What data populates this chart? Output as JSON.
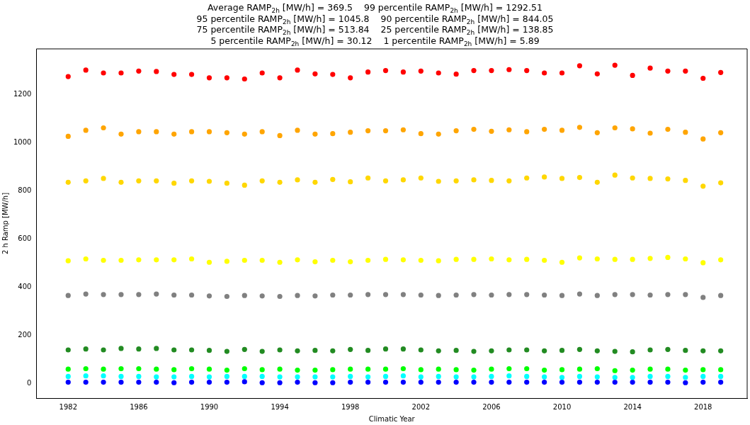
{
  "chart_data": {
    "type": "scatter",
    "title": "Average RAMP$_{2h}$ [MW/h] = 369.5    99 percentile RAMP$_{2h}$ [MW/h] = 1292.51\n95 percentile RAMP$_{2h}$ [MW/h] = 1045.8    90 percentile RAMP$_{2h}$ [MW/h] = 844.05\n75 percentile RAMP$_{2h}$ [MW/h] = 513.84    25 percentile RAMP$_{2h}$ [MW/h] = 138.85\n5 percentile RAMP$_{2h}$ [MW/h] = 30.12    1 percentile RAMP$_{2h}$ [MW/h] = 5.89",
    "xlabel": "Climatic Year",
    "ylabel": "2 h Ramp [MW/h]",
    "x": [
      1982,
      1983,
      1984,
      1985,
      1986,
      1987,
      1988,
      1989,
      1990,
      1991,
      1992,
      1993,
      1994,
      1995,
      1996,
      1997,
      1998,
      1999,
      2000,
      2001,
      2002,
      2003,
      2004,
      2005,
      2006,
      2007,
      2008,
      2009,
      2010,
      2011,
      2012,
      2013,
      2014,
      2015,
      2016,
      2017,
      2018,
      2019
    ],
    "xlim": [
      1980.2,
      2020.5
    ],
    "xticks": [
      1982,
      1986,
      1990,
      1994,
      1998,
      2002,
      2006,
      2010,
      2014,
      2018
    ],
    "ylim": [
      -60,
      1390
    ],
    "yticks": [
      0,
      200,
      400,
      600,
      800,
      1000,
      1200
    ],
    "grid": false,
    "legend": false,
    "marker": "circle",
    "series": [
      {
        "color": "#ff0000",
        "values": [
          1275,
          1302,
          1290,
          1290,
          1298,
          1296,
          1284,
          1284,
          1270,
          1270,
          1265,
          1290,
          1270,
          1302,
          1286,
          1284,
          1270,
          1294,
          1300,
          1294,
          1298,
          1290,
          1285,
          1300,
          1300,
          1304,
          1300,
          1290,
          1290,
          1320,
          1286,
          1322,
          1280,
          1310,
          1298,
          1298,
          1268,
          1292
        ]
      },
      {
        "color": "#ffa500",
        "values": [
          1027,
          1052,
          1062,
          1036,
          1046,
          1046,
          1036,
          1046,
          1046,
          1042,
          1036,
          1046,
          1030,
          1052,
          1036,
          1038,
          1044,
          1050,
          1050,
          1054,
          1038,
          1036,
          1050,
          1056,
          1048,
          1054,
          1046,
          1056,
          1052,
          1064,
          1042,
          1062,
          1058,
          1040,
          1056,
          1044,
          1016,
          1042
        ]
      },
      {
        "color": "#ffd700",
        "values": [
          836,
          842,
          852,
          836,
          842,
          842,
          832,
          842,
          840,
          832,
          824,
          842,
          836,
          846,
          836,
          848,
          838,
          854,
          842,
          846,
          854,
          840,
          842,
          846,
          844,
          842,
          854,
          858,
          852,
          856,
          836,
          866,
          854,
          852,
          850,
          844,
          820,
          834
        ]
      },
      {
        "color": "#ffff00",
        "values": [
          510,
          518,
          512,
          512,
          514,
          514,
          514,
          518,
          504,
          508,
          512,
          512,
          504,
          514,
          506,
          512,
          506,
          512,
          516,
          514,
          512,
          510,
          516,
          516,
          518,
          514,
          516,
          512,
          504,
          522,
          518,
          516,
          516,
          520,
          524,
          518,
          502,
          514
        ]
      },
      {
        "color": "#808080",
        "values": [
          366,
          372,
          370,
          370,
          370,
          372,
          368,
          368,
          364,
          362,
          366,
          364,
          362,
          366,
          364,
          368,
          368,
          370,
          370,
          370,
          368,
          366,
          368,
          370,
          368,
          370,
          370,
          368,
          366,
          372,
          366,
          370,
          370,
          368,
          370,
          370,
          358,
          366
        ]
      },
      {
        "color": "#228b22",
        "values": [
          140,
          144,
          140,
          146,
          144,
          146,
          140,
          140,
          138,
          134,
          142,
          134,
          140,
          136,
          138,
          136,
          142,
          138,
          144,
          144,
          140,
          136,
          138,
          134,
          136,
          140,
          140,
          136,
          138,
          142,
          136,
          134,
          132,
          140,
          142,
          138,
          136,
          136
        ]
      },
      {
        "color": "#00ff00",
        "values": [
          60,
          62,
          60,
          62,
          62,
          60,
          58,
          62,
          60,
          56,
          62,
          58,
          60,
          56,
          56,
          58,
          60,
          60,
          60,
          62,
          58,
          60,
          58,
          56,
          60,
          62,
          62,
          56,
          58,
          60,
          62,
          54,
          56,
          60,
          60,
          56,
          58,
          58
        ]
      },
      {
        "color": "#00ffff",
        "values": [
          30,
          32,
          32,
          30,
          30,
          28,
          28,
          30,
          28,
          30,
          30,
          30,
          28,
          28,
          28,
          28,
          30,
          28,
          30,
          32,
          28,
          30,
          28,
          28,
          30,
          32,
          30,
          28,
          26,
          30,
          28,
          26,
          26,
          30,
          30,
          26,
          30,
          30
        ]
      },
      {
        "color": "#0000ff",
        "values": [
          6,
          6,
          6,
          6,
          6,
          6,
          4,
          6,
          6,
          6,
          8,
          4,
          4,
          6,
          4,
          4,
          6,
          6,
          6,
          6,
          6,
          6,
          6,
          6,
          6,
          6,
          6,
          6,
          6,
          6,
          6,
          6,
          6,
          6,
          6,
          4,
          6,
          6
        ]
      }
    ]
  }
}
